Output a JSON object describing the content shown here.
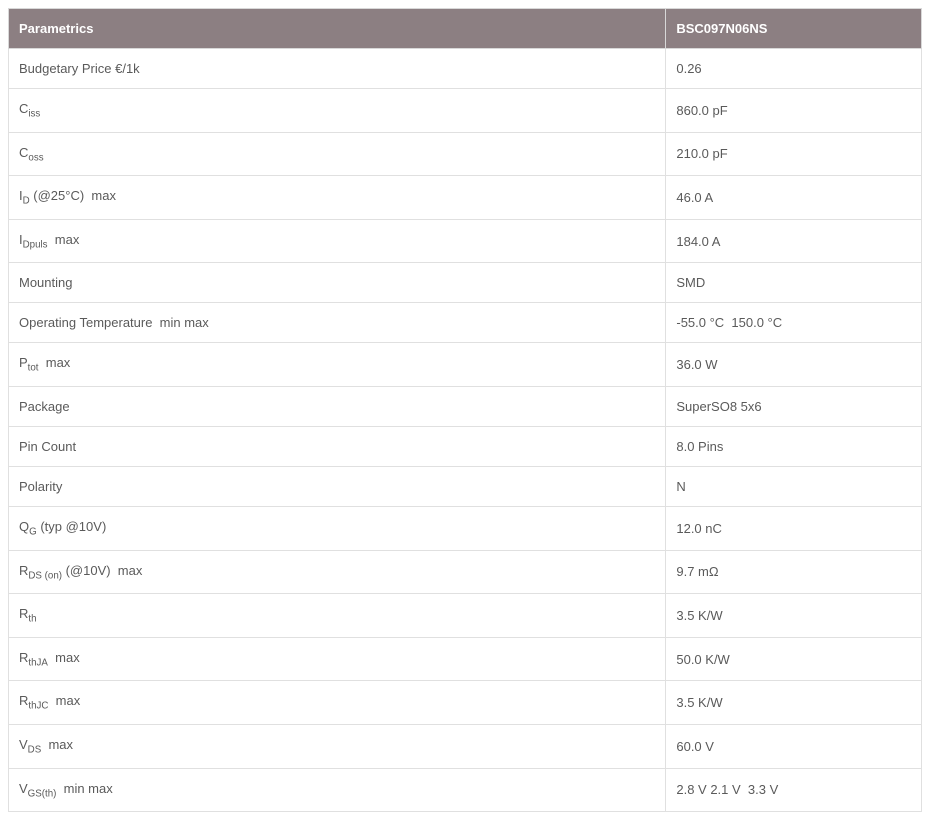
{
  "table": {
    "header_bg": "#8c7f82",
    "header_fg": "#ffffff",
    "border_color": "#e0e0e0",
    "cell_fg": "#5a5a5a",
    "columns": [
      "Parametrics",
      "BSC097N06NS"
    ],
    "rows": [
      {
        "param_html": "Budgetary Price €/1k",
        "value": "0.26"
      },
      {
        "param_html": "C<sub>iss</sub>",
        "value": "860.0 pF"
      },
      {
        "param_html": "C<sub>oss</sub>",
        "value": "210.0 pF"
      },
      {
        "param_html": "I<sub>D</sub> (@25°C)&nbsp;&nbsp;max",
        "value": "46.0 A"
      },
      {
        "param_html": "I<sub>Dpuls</sub>&nbsp;&nbsp;max",
        "value": "184.0 A"
      },
      {
        "param_html": "Mounting",
        "value": "SMD"
      },
      {
        "param_html": "Operating Temperature&nbsp;&nbsp;min&nbsp;max",
        "value": "-55.0 °C&nbsp;&nbsp;150.0 °C"
      },
      {
        "param_html": "P<sub>tot</sub>&nbsp;&nbsp;max",
        "value": "36.0 W"
      },
      {
        "param_html": "Package",
        "value": "SuperSO8 5x6"
      },
      {
        "param_html": "Pin Count",
        "value": "8.0 Pins"
      },
      {
        "param_html": "Polarity",
        "value": "N"
      },
      {
        "param_html": "Q<sub>G</sub> (typ @10V)",
        "value": "12.0 nC"
      },
      {
        "param_html": "R<sub>DS (on)</sub> (@10V)&nbsp;&nbsp;max",
        "value": "9.7 mΩ"
      },
      {
        "param_html": "R<sub>th</sub>",
        "value": "3.5 K/W"
      },
      {
        "param_html": "R<sub>thJA</sub>&nbsp;&nbsp;max",
        "value": "50.0 K/W"
      },
      {
        "param_html": "R<sub>thJC</sub>&nbsp;&nbsp;max",
        "value": "3.5 K/W"
      },
      {
        "param_html": "V<sub>DS</sub>&nbsp;&nbsp;max",
        "value": "60.0 V"
      },
      {
        "param_html": "V<sub>GS(th)</sub>&nbsp;&nbsp;min&nbsp;max",
        "value": "2.8 V 2.1 V&nbsp;&nbsp;3.3 V"
      }
    ]
  }
}
